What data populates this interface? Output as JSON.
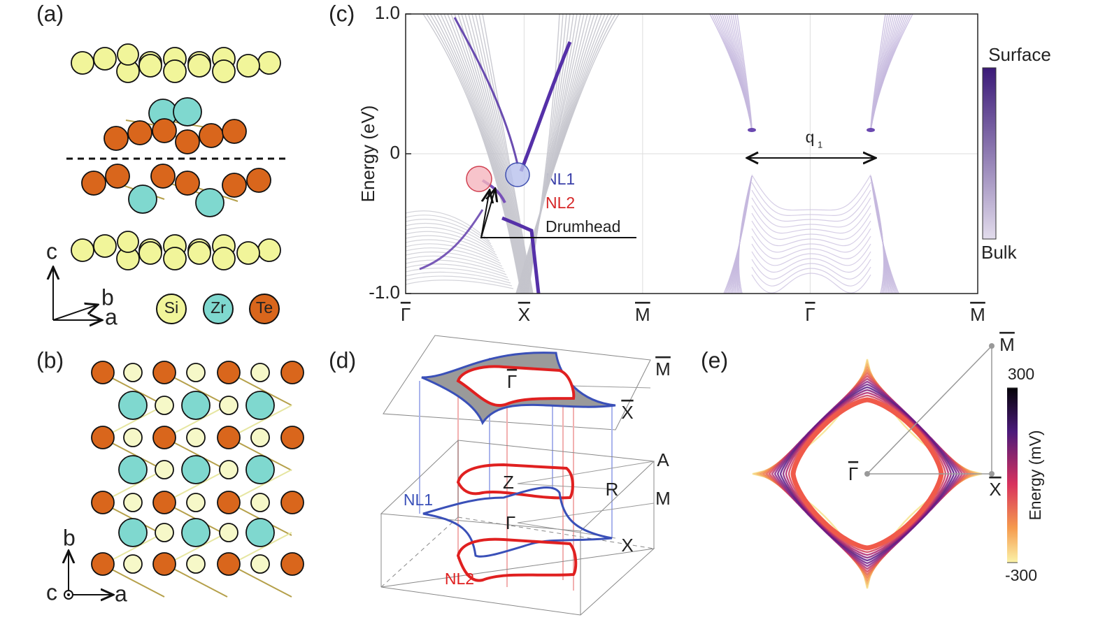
{
  "panels": {
    "a": {
      "label": "(a)",
      "axis_c": "c",
      "axis_b": "b",
      "axis_a": "a",
      "legend": [
        "Si",
        "Zr",
        "Te"
      ]
    },
    "b": {
      "label": "(b)",
      "axis_b": "b",
      "axis_c": "c",
      "axis_a": "a"
    },
    "c": {
      "label": "(c)"
    },
    "d": {
      "label": "(d)",
      "top_m": "M",
      "top_gamma": "Γ",
      "top_x": "X",
      "a": "A",
      "z": "Z",
      "r": "R",
      "m": "M",
      "gamma": "Γ",
      "x": "X",
      "nl1": "NL1",
      "nl2": "NL2"
    },
    "e": {
      "label": "(e)",
      "m": "M",
      "gamma": "Γ",
      "x": "X",
      "colorbar": {
        "label": "Energy (mV)",
        "lim": [
          -300,
          300
        ],
        "ticks": [
          -300,
          300
        ]
      }
    }
  },
  "chart_data": {
    "type": "line",
    "ylabel": "Energy (eV)",
    "xlim": [
      0,
      4.828
    ],
    "xticks": [
      {
        "value": 0,
        "label": "Γ"
      },
      {
        "value": 1,
        "label": "X"
      },
      {
        "value": 2,
        "label": "M"
      },
      {
        "value": 3.414,
        "label": "Γ"
      },
      {
        "value": 4.828,
        "label": "M"
      }
    ],
    "ylim": [
      -1,
      1
    ],
    "yticks": [
      {
        "value": -1,
        "label": "-1.0"
      },
      0,
      {
        "value": 1,
        "label": "1.0"
      }
    ],
    "grid": true,
    "colorbar": {
      "top": "Surface",
      "bottom": "Bulk"
    },
    "annotations": {
      "nl1": "NL1",
      "nl2": "NL2",
      "drumhead": "Drumhead",
      "q": "q",
      "q_sub": "1"
    }
  }
}
